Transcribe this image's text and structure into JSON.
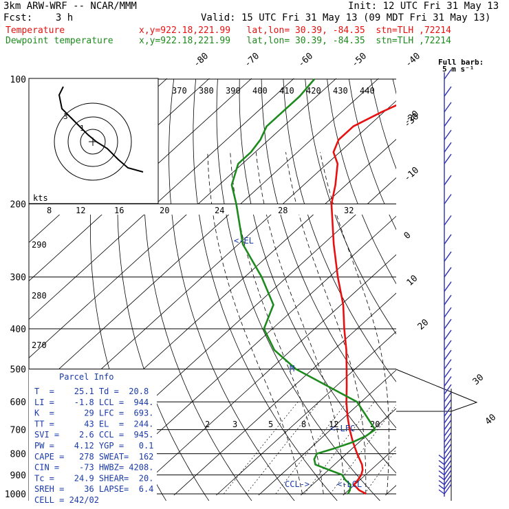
{
  "header": {
    "model": "3km ARW-WRF -- NCAR/MMM",
    "init": "Init: 12 UTC Fri 31 May 13",
    "fcst": "Fcst:    3 h",
    "valid": "Valid: 15 UTC Fri 31 May 13 (09 MDT Fri 31 May 13)",
    "temp_label": "Temperature",
    "temp_info": "x,y=922.18,221.99   lat,lon= 30.39, -84.35  stn=TLH ,72214",
    "dew_label": "Dewpoint temperature",
    "dew_info": "x,y=922.18,221.99   lat,lon= 30.39, -84.35  stn=TLH ,72214",
    "full_barb": "Full barb:",
    "full_barb_unit": "5 m s⁻¹"
  },
  "colors": {
    "temperature": "#e8100f",
    "dewpoint": "#1d8a1d",
    "barbs": "#3030b0",
    "parcel_text": "#1a3aa8"
  },
  "chart_data": {
    "type": "line",
    "diagram": "skew-T log-p",
    "ylabel": "",
    "xlabel": "",
    "pressure_ticks": [
      100,
      200,
      300,
      400,
      500,
      600,
      700,
      800,
      900,
      1000
    ],
    "isotherm_labels_top": [
      -80,
      -70,
      -60,
      -50,
      -40
    ],
    "isotherm_labels_right": [
      -30,
      -20,
      -10,
      0,
      10,
      20,
      30,
      40
    ],
    "theta_labels_top": [
      370,
      380,
      390,
      400,
      410,
      420,
      430,
      440
    ],
    "theta_labels_left": [
      290,
      280,
      270
    ],
    "hodo_ticks": [
      "kts",
      "8",
      "12",
      "16",
      "20",
      "24",
      "28",
      "32"
    ],
    "mixing_ratio_labels": [
      "2",
      "3",
      "5",
      "8",
      "12",
      "20"
    ],
    "series": [
      {
        "name": "Temperature",
        "p": [
          1000,
          980,
          950,
          925,
          900,
          875,
          850,
          800,
          750,
          700,
          650,
          600,
          550,
          500,
          450,
          400,
          350,
          300,
          250,
          200,
          180,
          160,
          150,
          140,
          130,
          120,
          110,
          100
        ],
        "t": [
          25.1,
          22.5,
          19.8,
          19.5,
          19.0,
          18.0,
          16.5,
          12.5,
          8.5,
          4.5,
          0.5,
          -3.5,
          -7.5,
          -12.0,
          -17.0,
          -23.0,
          -29.5,
          -38.0,
          -47.5,
          -58.5,
          -62.5,
          -67.5,
          -71.5,
          -73.5,
          -73.5,
          -70.5,
          -66.5,
          -62.5
        ]
      },
      {
        "name": "Dewpoint temperature",
        "p": [
          1000,
          980,
          950,
          925,
          900,
          875,
          850,
          825,
          800,
          775,
          750,
          725,
          700,
          650,
          600,
          550,
          500,
          450,
          400,
          350,
          300,
          250,
          200,
          180,
          160,
          150,
          140,
          130,
          120,
          110,
          100
        ],
        "t": [
          20.8,
          20.3,
          19.0,
          16.5,
          14.5,
          10.0,
          5.5,
          3.8,
          3.0,
          6.0,
          8.5,
          10.0,
          10.5,
          5.0,
          -1.0,
          -12.0,
          -24.0,
          -34.0,
          -42.0,
          -46.0,
          -56.0,
          -69.0,
          -81.0,
          -87.0,
          -91.0,
          -91.0,
          -92.0,
          -94.0,
          -94.0,
          -94.0,
          -95.0
        ]
      }
    ],
    "markers": [
      {
        "label": "LCL",
        "p": 944
      },
      {
        "label": "CCL",
        "p": 945
      },
      {
        "label": "LFC",
        "p": 693
      },
      {
        "label": "EL",
        "p": 244
      },
      {
        "label": "M",
        "p": 500
      }
    ],
    "winds": {
      "p": [
        1000,
        975,
        950,
        925,
        900,
        875,
        850,
        825,
        800,
        775,
        750,
        725,
        700,
        675,
        650,
        625,
        600,
        575,
        550,
        525,
        500,
        475,
        450,
        425,
        400,
        375,
        350,
        325,
        300,
        275,
        250,
        225,
        200,
        180,
        160,
        150,
        140,
        130,
        120,
        110,
        100
      ],
      "speed_ms": [
        3,
        4,
        4,
        4,
        4,
        4,
        4,
        4,
        5,
        5,
        5,
        5,
        5,
        5,
        5,
        5,
        5,
        5,
        5,
        5,
        5,
        5,
        5,
        5,
        5,
        5,
        5,
        5,
        5,
        5,
        5,
        5,
        5,
        5,
        5,
        5,
        5,
        5,
        5,
        5,
        5
      ]
    }
  },
  "parcel_info": {
    "title": "Parcel Info",
    "rows": [
      "T  =    25.1 Td =  20.8",
      "LI =    -1.8 LCL =  944.",
      "K  =      29 LFC =  693.",
      "TT =      43 EL  =  244.",
      "SVI =    2.6 CCL =  945.",
      "PW =    4.12 YGP =   0.1",
      "CAPE =   278 SWEAT=  162",
      "CIN =    -73 HWBZ= 4208.",
      "Tc =    24.9 SHEAR=  20.",
      "SREH =    36 LAPSE=  6.4",
      "CELL = 242/02"
    ]
  }
}
